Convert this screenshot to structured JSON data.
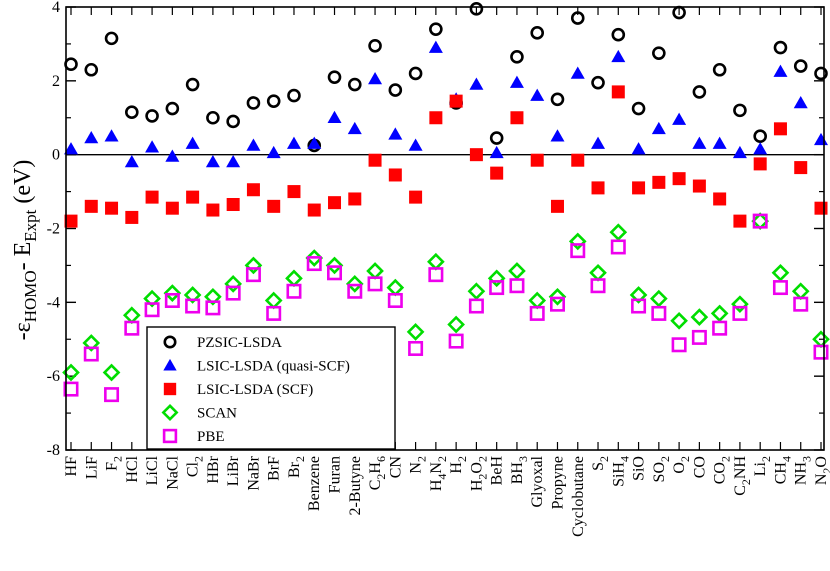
{
  "chart_data": {
    "type": "scatter",
    "title": "",
    "xlabel": "",
    "ylabel": "-εHOMO- EExpt (eV)",
    "ylabel_parts": {
      "minus": "-",
      "eps": "ε",
      "sub1": "HOMO",
      "mid": "- E",
      "sub2": "Expt",
      "unit": " (eV)"
    },
    "ylim": [
      -8,
      4
    ],
    "yticks": [
      -8,
      -6,
      -4,
      -2,
      0,
      2,
      4
    ],
    "yticks_label": [
      "-8",
      "-6",
      "-4",
      "-2",
      "0",
      "2",
      "4"
    ],
    "zero_line": true,
    "legend_position": "lower-left",
    "categories": [
      "HF",
      "LiF",
      "F2",
      "HCl",
      "LiCl",
      "NaCl",
      "Cl2",
      "HBr",
      "LiBr",
      "NaBr",
      "BrF",
      "Br2",
      "Benzene",
      "Furan",
      "2-Butyne",
      "C2H6",
      "CN",
      "N2",
      "H4N2",
      "H2",
      "H2O2",
      "BeH",
      "BH3",
      "Glyoxal",
      "Propyne",
      "Cyclobutane",
      "S2",
      "SiH4",
      "SiO",
      "SO2",
      "O2",
      "CO",
      "CO2",
      "C2NH",
      "Li2",
      "CH4",
      "NH3",
      "N2O"
    ],
    "category_labels": [
      {
        "main": "HF",
        "sub": ""
      },
      {
        "main": "LiF",
        "sub": ""
      },
      {
        "main": "F",
        "sub": "2"
      },
      {
        "main": "HCl",
        "sub": ""
      },
      {
        "main": "LiCl",
        "sub": ""
      },
      {
        "main": "NaCl",
        "sub": ""
      },
      {
        "main": "Cl",
        "sub": "2"
      },
      {
        "main": "HBr",
        "sub": ""
      },
      {
        "main": "LiBr",
        "sub": ""
      },
      {
        "main": "NaBr",
        "sub": ""
      },
      {
        "main": "BrF",
        "sub": ""
      },
      {
        "main": "Br",
        "sub": "2"
      },
      {
        "main": "Benzene",
        "sub": ""
      },
      {
        "main": "Furan",
        "sub": ""
      },
      {
        "main": "2-Butyne",
        "sub": ""
      },
      {
        "main": "C",
        "sub": "2",
        "main2": "H",
        "sub2": "6"
      },
      {
        "main": "CN",
        "sub": ""
      },
      {
        "main": "N",
        "sub": "2"
      },
      {
        "main": "H",
        "sub": "4",
        "main2": "N",
        "sub2": "2"
      },
      {
        "main": "H",
        "sub": "2"
      },
      {
        "main": "H",
        "sub": "2",
        "main2": "O",
        "sub2": "2"
      },
      {
        "main": "BeH",
        "sub": ""
      },
      {
        "main": "BH",
        "sub": "3"
      },
      {
        "main": "Glyoxal",
        "sub": ""
      },
      {
        "main": "Propyne",
        "sub": ""
      },
      {
        "main": "Cyclobutane",
        "sub": ""
      },
      {
        "main": "S",
        "sub": "2"
      },
      {
        "main": "SiH",
        "sub": "4"
      },
      {
        "main": "SiO",
        "sub": ""
      },
      {
        "main": "SO",
        "sub": "2"
      },
      {
        "main": "O",
        "sub": "2"
      },
      {
        "main": "CO",
        "sub": ""
      },
      {
        "main": "CO",
        "sub": "2"
      },
      {
        "main": "C",
        "sub": "2",
        "main2": "NH",
        "sub2": ""
      },
      {
        "main": "Li",
        "sub": "2"
      },
      {
        "main": "CH",
        "sub": "4"
      },
      {
        "main": "NH",
        "sub": "3"
      },
      {
        "main": "N",
        "sub": "2",
        "main2": "O",
        "sub2": ""
      }
    ],
    "series": [
      {
        "name": "PZSIC-LSDA",
        "marker": "circle",
        "color": "#000000",
        "values": [
          2.45,
          2.3,
          3.15,
          1.15,
          1.05,
          1.25,
          1.9,
          1.0,
          0.9,
          1.4,
          1.45,
          1.6,
          0.25,
          2.1,
          1.9,
          2.95,
          1.75,
          2.2,
          3.4,
          1.4,
          3.95,
          0.45,
          2.65,
          3.3,
          1.5,
          3.7,
          1.95,
          3.25,
          1.25,
          2.75,
          3.85,
          1.7,
          2.3,
          1.2,
          0.5,
          2.9,
          2.4,
          2.2
        ]
      },
      {
        "name": "LSIC-LSDA (quasi-SCF)",
        "marker": "triangle",
        "color": "#0000ff",
        "values": [
          0.15,
          0.45,
          0.5,
          -0.2,
          0.2,
          -0.05,
          0.3,
          -0.2,
          -0.2,
          0.25,
          0.05,
          0.3,
          0.3,
          1.0,
          0.7,
          2.05,
          0.55,
          0.25,
          2.9,
          1.5,
          1.9,
          0.05,
          1.95,
          1.6,
          0.5,
          2.2,
          0.3,
          2.65,
          0.15,
          0.7,
          0.95,
          0.3,
          0.3,
          0.05,
          0.15,
          2.25,
          1.4,
          0.4
        ]
      },
      {
        "name": "LSIC-LSDA (SCF)",
        "marker": "square-filled",
        "color": "#ff0000",
        "values": [
          -1.8,
          -1.4,
          -1.45,
          -1.7,
          -1.15,
          -1.45,
          -1.15,
          -1.5,
          -1.35,
          -0.95,
          -1.4,
          -1.0,
          -1.5,
          -1.3,
          -1.2,
          -0.15,
          -0.55,
          -1.15,
          1.0,
          1.45,
          0.0,
          -0.5,
          1.0,
          -0.15,
          -1.4,
          -0.15,
          -0.9,
          1.7,
          -0.9,
          -0.75,
          -0.65,
          -0.85,
          -1.2,
          -1.8,
          -0.25,
          0.7,
          -0.35,
          -1.45
        ]
      },
      {
        "name": "SCAN",
        "marker": "diamond",
        "color": "#00dd00",
        "values": [
          -5.9,
          -5.1,
          -5.9,
          -4.35,
          -3.9,
          -3.75,
          -3.8,
          -3.85,
          -3.5,
          -3.0,
          -3.95,
          -3.35,
          -2.8,
          -3.0,
          -3.5,
          -3.15,
          -3.6,
          -4.8,
          -2.9,
          -4.6,
          -3.7,
          -3.35,
          -3.15,
          -3.95,
          -3.85,
          -2.35,
          -3.2,
          -2.1,
          -3.8,
          -3.9,
          -4.5,
          -4.4,
          -4.3,
          -4.05,
          -1.8,
          -3.2,
          -3.7,
          -5.0
        ]
      },
      {
        "name": "PBE",
        "marker": "square-open",
        "color": "#ee00ee",
        "values": [
          -6.35,
          -5.4,
          -6.5,
          -4.7,
          -4.2,
          -3.95,
          -4.1,
          -4.15,
          -3.75,
          -3.25,
          -4.3,
          -3.7,
          -2.95,
          -3.2,
          -3.7,
          -3.5,
          -3.95,
          -5.25,
          -3.25,
          -5.05,
          -4.1,
          -3.6,
          -3.55,
          -4.3,
          -4.05,
          -2.6,
          -3.55,
          -2.5,
          -4.1,
          -4.3,
          -5.15,
          -4.95,
          -4.7,
          -4.3,
          -1.8,
          -3.6,
          -4.05,
          -5.35
        ]
      }
    ]
  }
}
